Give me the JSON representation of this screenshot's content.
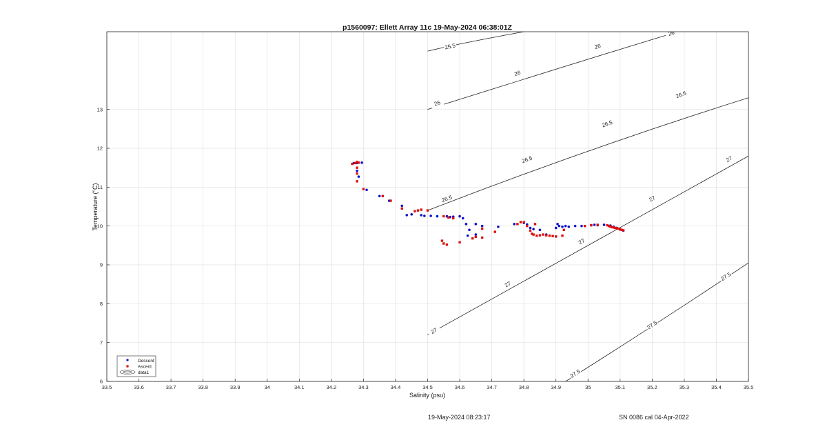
{
  "chart_data": {
    "type": "scatter",
    "title": "p1560097: Ellett Array 11c 19-May-2024 06:38:01Z",
    "xlabel": "Salinity (psu)",
    "ylabel": "Temperature (°C)",
    "xlim": [
      33.5,
      35.5
    ],
    "ylim": [
      6,
      15
    ],
    "xticks": [
      "33.5",
      "33.6",
      "33.7",
      "33.8",
      "33.9",
      "34",
      "34.1",
      "34.2",
      "34.3",
      "34.4",
      "34.5",
      "34.6",
      "34.7",
      "34.8",
      "34.9",
      "35",
      "35.1",
      "35.2",
      "35.3",
      "35.4",
      "35.5"
    ],
    "yticks": [
      "6",
      "7",
      "8",
      "9",
      "10",
      "11",
      "12",
      "13"
    ],
    "grid": true,
    "legend_position": "bottom-left",
    "legend": [
      "Descent",
      "Ascent",
      "data1"
    ],
    "colors": {
      "descent": "#1010cc",
      "ascent": "#dd1111",
      "contour": "#222222",
      "grid": "#e2e2e2"
    },
    "contours": [
      {
        "label": "25.5",
        "points": [
          [
            34.5,
            14.5
          ],
          [
            34.6,
            14.7
          ],
          [
            34.8,
            15.0
          ]
        ],
        "labels_at": [
          [
            34.57,
            14.62
          ]
        ]
      },
      {
        "label": "26",
        "points": [
          [
            34.5,
            13.0
          ],
          [
            35.0,
            14.3
          ],
          [
            35.28,
            15.0
          ]
        ],
        "labels_at": [
          [
            34.53,
            13.16
          ],
          [
            34.78,
            13.93
          ],
          [
            35.03,
            14.62
          ],
          [
            35.26,
            14.96
          ]
        ]
      },
      {
        "label": "26.5",
        "points": [
          [
            34.5,
            10.4
          ],
          [
            35.0,
            12.0
          ],
          [
            35.5,
            13.3
          ]
        ],
        "labels_at": [
          [
            34.56,
            10.7
          ],
          [
            34.81,
            11.71
          ],
          [
            35.06,
            12.63
          ],
          [
            35.29,
            13.38
          ]
        ]
      },
      {
        "label": "27",
        "points": [
          [
            34.5,
            7.2
          ],
          [
            35.0,
            9.5
          ],
          [
            35.5,
            11.8
          ]
        ],
        "labels_at": [
          [
            34.52,
            7.3
          ],
          [
            34.75,
            8.5
          ],
          [
            34.98,
            9.6
          ],
          [
            35.2,
            10.7
          ],
          [
            35.44,
            11.72
          ]
        ]
      },
      {
        "label": "27.5",
        "points": [
          [
            34.93,
            6.0
          ],
          [
            35.2,
            7.4
          ],
          [
            35.5,
            9.05
          ]
        ],
        "labels_at": [
          [
            34.96,
            6.2
          ],
          [
            35.2,
            7.45
          ],
          [
            35.43,
            8.7
          ]
        ]
      }
    ],
    "series": [
      {
        "name": "Descent",
        "points": [
          [
            34.27,
            11.62
          ],
          [
            34.28,
            11.62
          ],
          [
            34.295,
            11.63
          ],
          [
            34.28,
            11.42
          ],
          [
            34.285,
            11.27
          ],
          [
            34.31,
            10.93
          ],
          [
            34.35,
            10.77
          ],
          [
            34.38,
            10.65
          ],
          [
            34.42,
            10.52
          ],
          [
            34.435,
            10.28
          ],
          [
            34.45,
            10.3
          ],
          [
            34.48,
            10.28
          ],
          [
            34.49,
            10.26
          ],
          [
            34.51,
            10.26
          ],
          [
            34.53,
            10.25
          ],
          [
            34.56,
            10.25
          ],
          [
            34.57,
            10.23
          ],
          [
            34.58,
            10.24
          ],
          [
            34.6,
            10.25
          ],
          [
            34.61,
            10.2
          ],
          [
            34.62,
            10.05
          ],
          [
            34.63,
            9.9
          ],
          [
            34.625,
            9.75
          ],
          [
            34.65,
            9.78
          ],
          [
            34.65,
            10.05
          ],
          [
            34.67,
            10.0
          ],
          [
            34.72,
            9.98
          ],
          [
            34.77,
            10.05
          ],
          [
            34.8,
            10.08
          ],
          [
            34.81,
            10.04
          ],
          [
            34.82,
            9.95
          ],
          [
            34.83,
            9.92
          ],
          [
            34.85,
            9.9
          ],
          [
            34.87,
            9.78
          ],
          [
            34.9,
            9.95
          ],
          [
            34.905,
            10.05
          ],
          [
            34.91,
            10.0
          ],
          [
            34.92,
            9.98
          ],
          [
            34.93,
            10.0
          ],
          [
            34.94,
            9.98
          ],
          [
            34.96,
            10.0
          ],
          [
            34.98,
            10.0
          ],
          [
            35.01,
            10.02
          ],
          [
            35.02,
            10.03
          ],
          [
            35.03,
            10.02
          ],
          [
            35.05,
            10.03
          ],
          [
            35.07,
            10.01
          ],
          [
            35.08,
            9.98
          ],
          [
            35.09,
            9.95
          ],
          [
            35.1,
            9.92
          ],
          [
            35.11,
            9.88
          ]
        ]
      },
      {
        "name": "Ascent",
        "points": [
          [
            34.265,
            11.6
          ],
          [
            34.275,
            11.62
          ],
          [
            34.28,
            11.65
          ],
          [
            34.285,
            11.63
          ],
          [
            34.28,
            11.5
          ],
          [
            34.28,
            11.35
          ],
          [
            34.28,
            11.15
          ],
          [
            34.3,
            10.95
          ],
          [
            34.36,
            10.77
          ],
          [
            34.385,
            10.65
          ],
          [
            34.42,
            10.45
          ],
          [
            34.46,
            10.38
          ],
          [
            34.47,
            10.4
          ],
          [
            34.48,
            10.42
          ],
          [
            34.5,
            10.4
          ],
          [
            34.55,
            10.25
          ],
          [
            34.565,
            10.22
          ],
          [
            34.58,
            10.2
          ],
          [
            34.545,
            9.62
          ],
          [
            34.55,
            9.55
          ],
          [
            34.56,
            9.52
          ],
          [
            34.6,
            9.58
          ],
          [
            34.64,
            9.68
          ],
          [
            34.65,
            9.72
          ],
          [
            34.67,
            9.93
          ],
          [
            34.67,
            9.7
          ],
          [
            34.71,
            9.85
          ],
          [
            34.78,
            10.05
          ],
          [
            34.79,
            10.1
          ],
          [
            34.8,
            10.1
          ],
          [
            34.81,
            10.0
          ],
          [
            34.82,
            9.88
          ],
          [
            34.825,
            9.8
          ],
          [
            34.83,
            9.78
          ],
          [
            34.835,
            10.05
          ],
          [
            34.84,
            9.75
          ],
          [
            34.85,
            9.76
          ],
          [
            34.86,
            9.78
          ],
          [
            34.87,
            9.76
          ],
          [
            34.88,
            9.75
          ],
          [
            34.89,
            9.74
          ],
          [
            34.9,
            9.73
          ],
          [
            34.92,
            9.75
          ],
          [
            34.925,
            9.9
          ],
          [
            34.99,
            10.0
          ],
          [
            35.01,
            10.02
          ],
          [
            35.03,
            10.03
          ],
          [
            35.06,
            10.02
          ],
          [
            35.065,
            10.0
          ],
          [
            35.07,
            9.98
          ],
          [
            35.075,
            9.97
          ],
          [
            35.08,
            9.96
          ],
          [
            35.085,
            9.95
          ],
          [
            35.09,
            9.94
          ],
          [
            35.095,
            9.93
          ],
          [
            35.1,
            9.91
          ],
          [
            35.105,
            9.9
          ],
          [
            35.11,
            9.89
          ]
        ]
      }
    ]
  },
  "footer": {
    "timestamp": "19-May-2024 08:23:17",
    "calibration": "SN 0086 cal 04-Apr-2022"
  }
}
